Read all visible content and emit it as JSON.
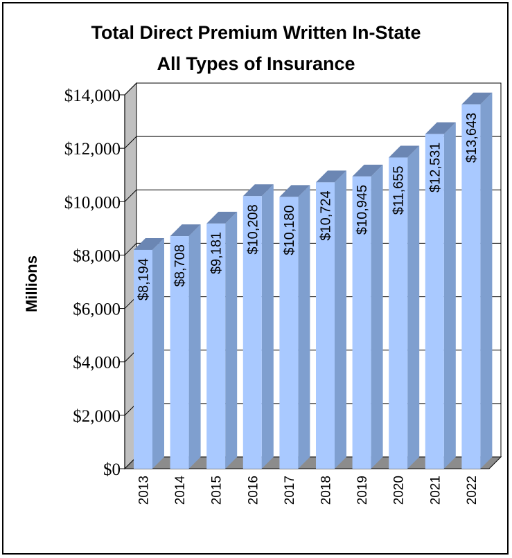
{
  "chart_data": {
    "type": "bar",
    "title": "Total Direct Premium Written In-State",
    "subtitle": "All Types of Insurance",
    "ylabel": "Millions",
    "xlabel": "",
    "categories": [
      "2013",
      "2014",
      "2015",
      "2016",
      "2017",
      "2018",
      "2019",
      "2020",
      "2021",
      "2022"
    ],
    "values": [
      8194,
      8708,
      9181,
      10208,
      10180,
      10724,
      10945,
      11655,
      12531,
      13643
    ],
    "data_labels": [
      "$8,194",
      "$8,708",
      "$9,181",
      "$10,208",
      "$10,180",
      "$10,724",
      "$10,945",
      "$11,655",
      "$12,531",
      "$13,643"
    ],
    "ylim": [
      0,
      14000
    ],
    "yticks": [
      0,
      2000,
      4000,
      6000,
      8000,
      10000,
      12000,
      14000
    ],
    "ytick_labels": [
      "$0",
      "$2,000",
      "$4,000",
      "$6,000",
      "$8,000",
      "$10,000",
      "$12,000",
      "$14,000"
    ],
    "grid": true,
    "legend": "none",
    "style": "3d-column"
  },
  "colors": {
    "bar_front": "#a9c9ff",
    "bar_side": "#7f9fcf",
    "bar_top": "#6b86b3",
    "back_wall": "#ffffff",
    "side_wall": "#c0c0c0",
    "floor": "#8c8c8c",
    "grid": "#000000"
  }
}
